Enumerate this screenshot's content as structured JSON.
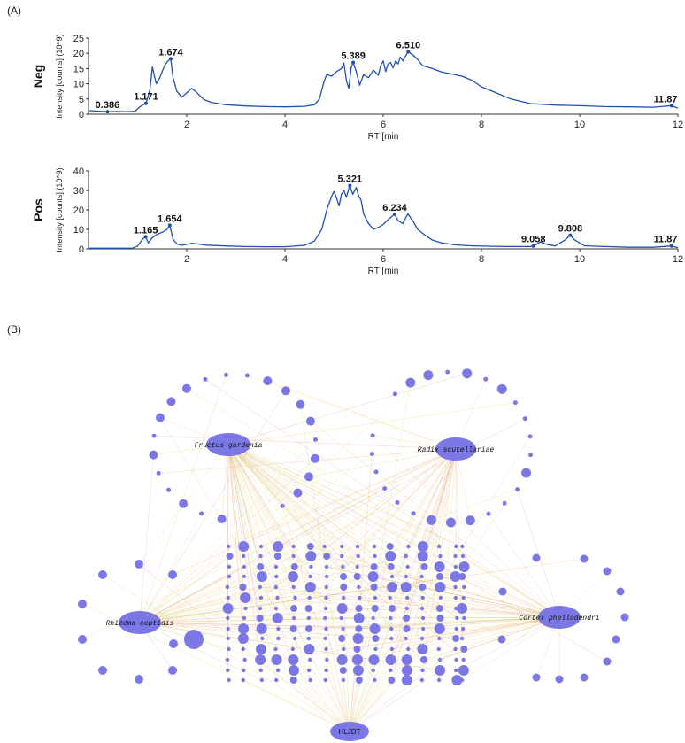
{
  "panel_a_label": "(A)",
  "panel_b_label": "(B)",
  "chart_data": [
    {
      "type": "line",
      "mode_label": "Neg",
      "ylabel": "Intensity [counts] (10^9)",
      "xlabel": "RT [min",
      "xlim": [
        0,
        12
      ],
      "ylim": [
        0,
        25
      ],
      "xticks": [
        2,
        4,
        6,
        8,
        10,
        12
      ],
      "yticks": [
        0,
        5,
        10,
        15,
        20,
        25
      ],
      "color": "#1f4fb5",
      "series": [
        {
          "name": "Neg",
          "x": [
            0,
            0.2,
            0.386,
            0.6,
            0.8,
            0.95,
            1.05,
            1.171,
            1.25,
            1.3,
            1.38,
            1.45,
            1.55,
            1.62,
            1.674,
            1.72,
            1.8,
            1.9,
            2.0,
            2.1,
            2.2,
            2.35,
            2.5,
            2.8,
            3.2,
            3.6,
            4.0,
            4.4,
            4.6,
            4.7,
            4.8,
            4.85,
            4.95,
            5.05,
            5.15,
            5.2,
            5.25,
            5.3,
            5.35,
            5.389,
            5.45,
            5.52,
            5.6,
            5.7,
            5.8,
            5.9,
            5.95,
            6.0,
            6.05,
            6.1,
            6.15,
            6.2,
            6.25,
            6.3,
            6.35,
            6.4,
            6.45,
            6.51,
            6.6,
            6.7,
            6.8,
            7.0,
            7.2,
            7.4,
            7.6,
            7.8,
            8.0,
            8.3,
            8.6,
            9.0,
            9.5,
            10.0,
            10.5,
            11.0,
            11.5,
            11.87,
            12.0
          ],
          "y": [
            1.2,
            1.0,
            0.8,
            0.9,
            0.8,
            1.0,
            2.5,
            3.6,
            8,
            15.5,
            10,
            12,
            16,
            17.5,
            18.2,
            12,
            7.5,
            5.6,
            7,
            8.5,
            7.2,
            4.8,
            3.9,
            3.1,
            2.7,
            2.5,
            2.4,
            2.6,
            3.1,
            5,
            11,
            13,
            12.5,
            14,
            15,
            16.8,
            11,
            8.5,
            15.5,
            17,
            14,
            9.5,
            13,
            12,
            14.5,
            12.8,
            16,
            17.5,
            14,
            16.5,
            17,
            15.2,
            17.5,
            16.5,
            18.8,
            17.5,
            19,
            20.5,
            19.5,
            18,
            16,
            15,
            13.8,
            13.2,
            12.5,
            11.2,
            9,
            7,
            5,
            3.5,
            3,
            2.8,
            2.5,
            2.4,
            2.3,
            2.8,
            2.0
          ]
        }
      ],
      "annotations": [
        {
          "x": 0.386,
          "y": 0.8,
          "label": "0.386"
        },
        {
          "x": 1.171,
          "y": 3.6,
          "label": "1.171"
        },
        {
          "x": 1.674,
          "y": 18.2,
          "label": "1.674"
        },
        {
          "x": 5.389,
          "y": 17,
          "label": "5.389"
        },
        {
          "x": 6.51,
          "y": 20.5,
          "label": "6.510"
        },
        {
          "x": 11.87,
          "y": 2.8,
          "label": "11.87"
        }
      ]
    },
    {
      "type": "line",
      "mode_label": "Pos",
      "ylabel": "Intensity [counts] (10^9)",
      "xlabel": "RT [min",
      "xlim": [
        0,
        12
      ],
      "ylim": [
        0,
        40
      ],
      "xticks": [
        2,
        4,
        6,
        8,
        10,
        12
      ],
      "yticks": [
        0,
        10,
        20,
        30,
        40
      ],
      "color": "#1f4fb5",
      "series": [
        {
          "name": "Pos",
          "x": [
            0,
            0.3,
            0.6,
            0.9,
            1.0,
            1.1,
            1.165,
            1.22,
            1.3,
            1.4,
            1.5,
            1.6,
            1.654,
            1.72,
            1.8,
            1.9,
            2.0,
            2.1,
            2.2,
            2.4,
            2.8,
            3.2,
            3.6,
            4.0,
            4.4,
            4.6,
            4.75,
            4.85,
            4.95,
            5.0,
            5.05,
            5.1,
            5.15,
            5.2,
            5.25,
            5.3,
            5.321,
            5.38,
            5.45,
            5.5,
            5.55,
            5.6,
            5.7,
            5.8,
            5.9,
            6.0,
            6.1,
            6.234,
            6.3,
            6.4,
            6.5,
            6.6,
            6.7,
            6.85,
            7.0,
            7.2,
            7.5,
            7.8,
            8.2,
            8.6,
            9.0,
            9.058,
            9.2,
            9.35,
            9.5,
            9.7,
            9.808,
            9.9,
            10.1,
            10.5,
            11.0,
            11.5,
            11.87,
            12.0
          ],
          "y": [
            0.3,
            0.3,
            0.3,
            0.4,
            1.5,
            5,
            6.2,
            3,
            5.8,
            7.5,
            8.5,
            10,
            12.1,
            5,
            2.5,
            1.8,
            2.3,
            2.8,
            2.6,
            1.9,
            1.5,
            1.2,
            1.1,
            1.1,
            1.8,
            4,
            10,
            20,
            27,
            29.5,
            26,
            22,
            28,
            30,
            26.5,
            31,
            32.5,
            28,
            31.5,
            27,
            25,
            18,
            13,
            10,
            11,
            12.5,
            15,
            17.8,
            14.5,
            13,
            18,
            14.5,
            10,
            7,
            4.5,
            3,
            2,
            1.6,
            1.3,
            1.2,
            1.2,
            1.5,
            3.5,
            2.2,
            1.5,
            4.5,
            7,
            4.5,
            1.6,
            1.2,
            0.8,
            0.8,
            1.5,
            0.6
          ]
        }
      ],
      "annotations": [
        {
          "x": 1.165,
          "y": 6.2,
          "label": "1.165"
        },
        {
          "x": 1.654,
          "y": 12.1,
          "label": "1.654"
        },
        {
          "x": 5.321,
          "y": 32.5,
          "label": "5.321"
        },
        {
          "x": 6.234,
          "y": 17.8,
          "label": "6.234"
        },
        {
          "x": 9.058,
          "y": 1.5,
          "label": "9.058"
        },
        {
          "x": 9.808,
          "y": 7,
          "label": "9.808"
        },
        {
          "x": 11.87,
          "y": 1.5,
          "label": "11.87"
        }
      ]
    }
  ],
  "network": {
    "type": "network",
    "hubs": [
      {
        "id": "fructus",
        "label": "Fructus gardenia"
      },
      {
        "id": "radix",
        "label": "Radix scutellariae"
      },
      {
        "id": "rhizoma",
        "label": "Rhizoma coptidis"
      },
      {
        "id": "cortex",
        "label": "Cortex phellodendri"
      },
      {
        "id": "hljdt",
        "label": "HLJDT"
      }
    ],
    "node_color": "#7b78e6",
    "edge_colors": [
      "#f3b27a",
      "#f0d36a",
      "#e8a0a0",
      "#c9df7a"
    ]
  }
}
